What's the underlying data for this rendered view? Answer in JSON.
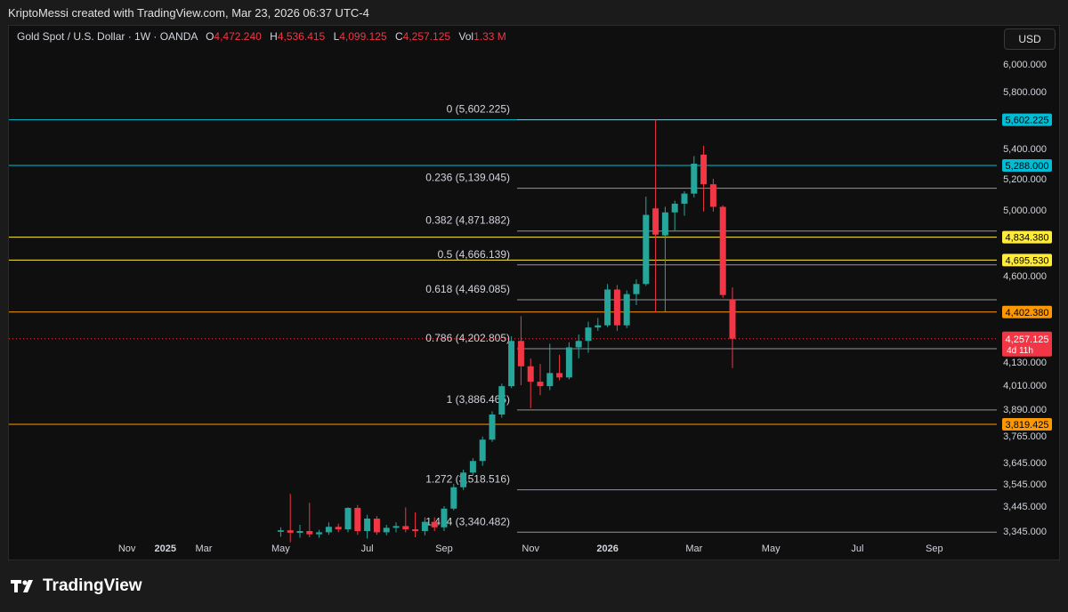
{
  "header": {
    "credit": "KriptoMessi created with TradingView.com, Mar 23, 2026 06:37 UTC-4",
    "symbol": "Gold Spot / U.S. Dollar · 1W · OANDA",
    "open_label": "O",
    "open_value": "4,472.240",
    "high_label": "H",
    "high_value": "4,536.415",
    "low_label": "L",
    "low_value": "4,099.125",
    "close_label": "C",
    "close_value": "4,257.125",
    "vol_label": "Vol",
    "vol_value": "1.33 M",
    "currency": "USD"
  },
  "footer": {
    "brand": "TradingView"
  },
  "colors": {
    "up": "#26a69a",
    "down": "#f23645",
    "background": "#0f0f0f",
    "cyan": "#00bcd4",
    "yellow": "#ffeb3b",
    "orange": "#ff9800",
    "fib": "#b2b5be"
  },
  "chart_data": {
    "type": "candlestick",
    "x_ticks": [
      {
        "label": "Nov",
        "i": -8
      },
      {
        "label": "2025",
        "i": -4
      },
      {
        "label": "Mar",
        "i": 0
      },
      {
        "label": "May",
        "i": 8
      },
      {
        "label": "Jul",
        "i": 17
      },
      {
        "label": "Sep",
        "i": 25
      },
      {
        "label": "Nov",
        "i": 34
      },
      {
        "label": "2026",
        "i": 42
      },
      {
        "label": "Mar",
        "i": 51
      },
      {
        "label": "May",
        "i": 59
      },
      {
        "label": "Jul",
        "i": 68
      },
      {
        "label": "Sep",
        "i": 76
      }
    ],
    "y_ticks": [
      {
        "label": "6,000.000",
        "v": 6000
      },
      {
        "label": "5,800.000",
        "v": 5800
      },
      {
        "label": "5,400.000",
        "v": 5400
      },
      {
        "label": "5,200.000",
        "v": 5200
      },
      {
        "label": "5,000.000",
        "v": 5000
      },
      {
        "label": "4,600.000",
        "v": 4600
      },
      {
        "label": "4,130.000",
        "v": 4130
      },
      {
        "label": "4,010.000",
        "v": 4010
      },
      {
        "label": "3,890.000",
        "v": 3890
      },
      {
        "label": "3,765.000",
        "v": 3765
      },
      {
        "label": "3,645.000",
        "v": 3645
      },
      {
        "label": "3,545.000",
        "v": 3545
      },
      {
        "label": "3,445.000",
        "v": 3445
      },
      {
        "label": "3,345.000",
        "v": 3345
      }
    ],
    "fib_levels": [
      {
        "label": "0 (5,602.225)",
        "v": 5602.225
      },
      {
        "label": "0.236 (5,139.045)",
        "v": 5139.045
      },
      {
        "label": "0.382 (4,871.882)",
        "v": 4871.882
      },
      {
        "label": "0.5 (4,666.139)",
        "v": 4666.139
      },
      {
        "label": "0.618 (4,469.085)",
        "v": 4469.085
      },
      {
        "label": "0.786 (4,202.805)",
        "v": 4202.805
      },
      {
        "label": "1 (3,886.465)",
        "v": 3886.465
      },
      {
        "label": "1.272 (3,518.516)",
        "v": 3518.516
      },
      {
        "label": "1.414 (3,340.482)",
        "v": 3340.482
      }
    ],
    "horizontal_lines": [
      {
        "label": "5,602.225",
        "v": 5602.225,
        "color": "#00bcd4",
        "text_color": "#000000"
      },
      {
        "label": "5,288.000",
        "v": 5288,
        "color": "#00bcd4",
        "text_color": "#000000"
      },
      {
        "label": "4,834.380",
        "v": 4834.38,
        "color": "#ffeb3b",
        "text_color": "#000000"
      },
      {
        "label": "4,695.530",
        "v": 4695.53,
        "color": "#ffeb3b",
        "text_color": "#000000"
      },
      {
        "label": "4,402.380",
        "v": 4402.38,
        "color": "#ff9800",
        "text_color": "#000000"
      },
      {
        "label": "3,819.425",
        "v": 3819.425,
        "color": "#ff9800",
        "text_color": "#000000"
      }
    ],
    "last_price": {
      "label": "4,257.125",
      "countdown": "4d 11h",
      "v": 4257.125,
      "color": "#f23645"
    },
    "candles": [
      {
        "i": 8,
        "o": 3342,
        "h": 3360,
        "l": 3322,
        "c": 3348
      },
      {
        "i": 9,
        "o": 3348,
        "h": 3500,
        "l": 3300,
        "c": 3338
      },
      {
        "i": 10,
        "o": 3338,
        "h": 3370,
        "l": 3318,
        "c": 3345
      },
      {
        "i": 11,
        "o": 3345,
        "h": 3460,
        "l": 3320,
        "c": 3332
      },
      {
        "i": 12,
        "o": 3332,
        "h": 3350,
        "l": 3318,
        "c": 3340
      },
      {
        "i": 13,
        "o": 3340,
        "h": 3380,
        "l": 3330,
        "c": 3362
      },
      {
        "i": 14,
        "o": 3362,
        "h": 3375,
        "l": 3340,
        "c": 3352
      },
      {
        "i": 15,
        "o": 3352,
        "h": 3440,
        "l": 3340,
        "c": 3438
      },
      {
        "i": 16,
        "o": 3438,
        "h": 3450,
        "l": 3330,
        "c": 3345
      },
      {
        "i": 17,
        "o": 3345,
        "h": 3410,
        "l": 3315,
        "c": 3395
      },
      {
        "i": 18,
        "o": 3395,
        "h": 3405,
        "l": 3330,
        "c": 3340
      },
      {
        "i": 19,
        "o": 3340,
        "h": 3370,
        "l": 3328,
        "c": 3358
      },
      {
        "i": 20,
        "o": 3358,
        "h": 3380,
        "l": 3340,
        "c": 3365
      },
      {
        "i": 21,
        "o": 3365,
        "h": 3440,
        "l": 3340,
        "c": 3352
      },
      {
        "i": 22,
        "o": 3352,
        "h": 3420,
        "l": 3320,
        "c": 3345
      },
      {
        "i": 23,
        "o": 3345,
        "h": 3400,
        "l": 3328,
        "c": 3382
      },
      {
        "i": 24,
        "o": 3382,
        "h": 3400,
        "l": 3345,
        "c": 3360
      },
      {
        "i": 25,
        "o": 3360,
        "h": 3445,
        "l": 3345,
        "c": 3435
      },
      {
        "i": 26,
        "o": 3435,
        "h": 3545,
        "l": 3428,
        "c": 3530
      },
      {
        "i": 27,
        "o": 3530,
        "h": 3612,
        "l": 3518,
        "c": 3598
      },
      {
        "i": 28,
        "o": 3598,
        "h": 3665,
        "l": 3585,
        "c": 3652
      },
      {
        "i": 29,
        "o": 3652,
        "h": 3762,
        "l": 3630,
        "c": 3748
      },
      {
        "i": 30,
        "o": 3748,
        "h": 3880,
        "l": 3738,
        "c": 3865
      },
      {
        "i": 31,
        "o": 3865,
        "h": 4018,
        "l": 3850,
        "c": 4005
      },
      {
        "i": 32,
        "o": 4005,
        "h": 4270,
        "l": 3995,
        "c": 4245
      },
      {
        "i": 33,
        "o": 4245,
        "h": 4380,
        "l": 4010,
        "c": 4108
      },
      {
        "i": 34,
        "o": 4108,
        "h": 4150,
        "l": 3895,
        "c": 4028
      },
      {
        "i": 35,
        "o": 4028,
        "h": 4120,
        "l": 3960,
        "c": 4005
      },
      {
        "i": 36,
        "o": 4005,
        "h": 4230,
        "l": 3985,
        "c": 4073
      },
      {
        "i": 37,
        "o": 4073,
        "h": 4170,
        "l": 4035,
        "c": 4050
      },
      {
        "i": 38,
        "o": 4050,
        "h": 4238,
        "l": 4040,
        "c": 4210
      },
      {
        "i": 39,
        "o": 4210,
        "h": 4280,
        "l": 4150,
        "c": 4245
      },
      {
        "i": 40,
        "o": 4245,
        "h": 4350,
        "l": 4180,
        "c": 4318
      },
      {
        "i": 41,
        "o": 4318,
        "h": 4370,
        "l": 4300,
        "c": 4330
      },
      {
        "i": 42,
        "o": 4330,
        "h": 4555,
        "l": 4320,
        "c": 4525
      },
      {
        "i": 43,
        "o": 4525,
        "h": 4550,
        "l": 4300,
        "c": 4330
      },
      {
        "i": 44,
        "o": 4330,
        "h": 4520,
        "l": 4315,
        "c": 4500
      },
      {
        "i": 45,
        "o": 4500,
        "h": 4580,
        "l": 4440,
        "c": 4555
      },
      {
        "i": 46,
        "o": 4555,
        "h": 5085,
        "l": 4545,
        "c": 4970
      },
      {
        "i": 47,
        "o": 5010,
        "h": 5602,
        "l": 4400,
        "c": 4850
      },
      {
        "i": 48,
        "o": 4845,
        "h": 5020,
        "l": 4402,
        "c": 4985
      },
      {
        "i": 49,
        "o": 4985,
        "h": 5060,
        "l": 4875,
        "c": 5040
      },
      {
        "i": 50,
        "o": 5040,
        "h": 5120,
        "l": 4965,
        "c": 5105
      },
      {
        "i": 51,
        "o": 5105,
        "h": 5350,
        "l": 5080,
        "c": 5300
      },
      {
        "i": 52,
        "o": 5360,
        "h": 5420,
        "l": 4990,
        "c": 5165
      },
      {
        "i": 53,
        "o": 5165,
        "h": 5200,
        "l": 4990,
        "c": 5020
      },
      {
        "i": 54,
        "o": 5020,
        "h": 5030,
        "l": 4480,
        "c": 4495
      },
      {
        "i": 55,
        "o": 4472.24,
        "h": 4536.415,
        "l": 4099.125,
        "c": 4257.125
      }
    ]
  }
}
